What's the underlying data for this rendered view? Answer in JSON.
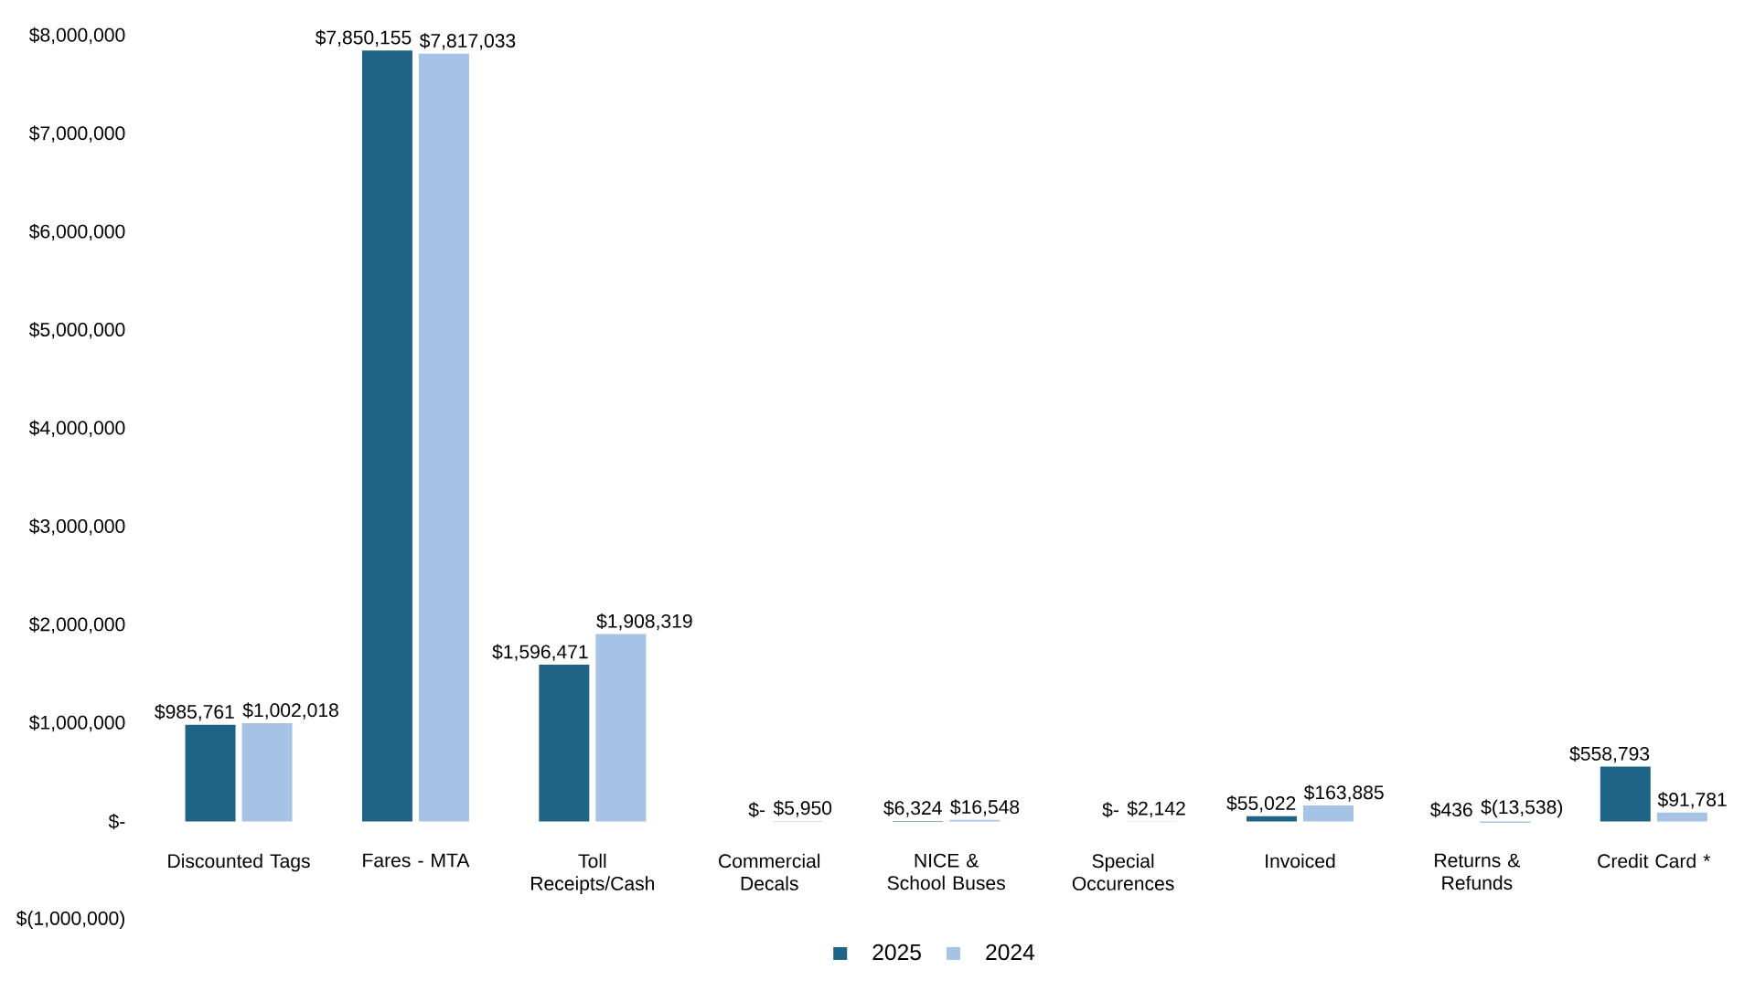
{
  "chart_data": {
    "type": "bar",
    "categories": [
      "Discounted Tags",
      "Fares - MTA",
      "Toll Receipts/Cash",
      "Commercial Decals",
      "NICE & School Buses",
      "Special Occurences",
      "Invoiced",
      "Returns & Refunds",
      "Credit Card *"
    ],
    "series": [
      {
        "name": "2025",
        "color": "#1f6486",
        "values": [
          985761,
          7850155,
          1596471,
          0,
          6324,
          0,
          55022,
          436,
          558793
        ],
        "value_labels": [
          "$985,761",
          "$7,850,155",
          "$1,596,471",
          "$-",
          "$6,324",
          "$-",
          "$55,022",
          "$436",
          "$558,793"
        ]
      },
      {
        "name": "2024",
        "color": "#a6c3e6",
        "values": [
          1002018,
          7817033,
          1908319,
          5950,
          16548,
          2142,
          163885,
          -13538,
          91781
        ],
        "value_labels": [
          "$1,002,018",
          "$7,817,033",
          "$1,908,319",
          "$5,950",
          "$16,548",
          "$2,142",
          "$163,885",
          "$(13,538)",
          "$91,781"
        ]
      }
    ],
    "ylim": [
      -1000000,
      8000000
    ],
    "yticks": [
      {
        "value": -1000000,
        "label": "$(1,000,000)"
      },
      {
        "value": 0,
        "label": "$-"
      },
      {
        "value": 1000000,
        "label": "$1,000,000"
      },
      {
        "value": 2000000,
        "label": "$2,000,000"
      },
      {
        "value": 3000000,
        "label": "$3,000,000"
      },
      {
        "value": 4000000,
        "label": "$4,000,000"
      },
      {
        "value": 5000000,
        "label": "$5,000,000"
      },
      {
        "value": 6000000,
        "label": "$6,000,000"
      },
      {
        "value": 7000000,
        "label": "$7,000,000"
      },
      {
        "value": 8000000,
        "label": "$8,000,000"
      }
    ],
    "legend": "bottom"
  }
}
